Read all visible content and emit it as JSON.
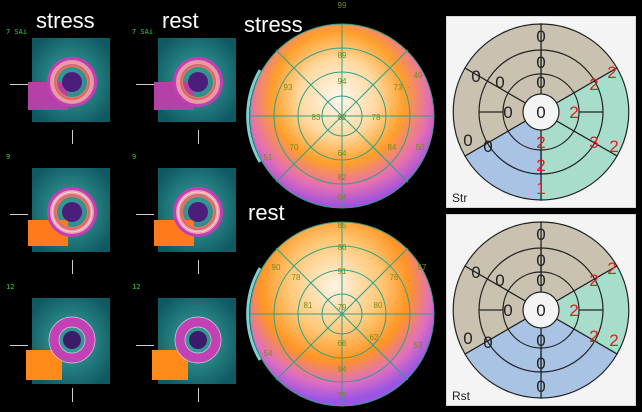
{
  "headers": {
    "stress_slices": "stress",
    "rest_slices": "rest",
    "stress_polar": "stress",
    "rest_polar": "rest"
  },
  "slice_labels": [
    "7 SAi",
    "7 SAi",
    "9",
    "9",
    "12",
    "12"
  ],
  "stress_polar_values": {
    "ring1": [
      "99",
      "49",
      "49",
      "50",
      "50",
      "51",
      "52",
      "55",
      "64"
    ],
    "ring2": [
      "89",
      "93",
      "73",
      "78",
      "84",
      "70"
    ],
    "ring3": [
      "94",
      "83",
      "64",
      "82"
    ],
    "apex": [
      "82"
    ]
  },
  "rest_polar_values": {
    "ring1": [
      "85",
      "90",
      "57",
      "53",
      "54"
    ],
    "ring2": [
      "86",
      "78",
      "76",
      "80"
    ],
    "ring3": [
      "91",
      "81",
      "79",
      "62",
      "66",
      "94"
    ],
    "apex": [
      "79"
    ]
  },
  "stress_score": {
    "label": "Str",
    "basal": [
      "0",
      "2",
      "2",
      "1",
      "0",
      "0"
    ],
    "mid": [
      "0",
      "2",
      "3",
      "2",
      "0",
      "0"
    ],
    "apical": [
      "0",
      "2",
      "2",
      "0"
    ],
    "apex": "0"
  },
  "rest_score": {
    "label": "Rst",
    "basal": [
      "0",
      "2",
      "2",
      "0",
      "0",
      "0"
    ],
    "mid": [
      "0",
      "2",
      "2",
      "0",
      "0",
      "0"
    ],
    "apical": [
      "0",
      "2",
      "0",
      "0"
    ],
    "apex": "0"
  },
  "colors": {
    "score_red": "#e02020",
    "beige": "#c9c2b0",
    "teal": "#a8dccb",
    "blue": "#a9c3e4"
  }
}
